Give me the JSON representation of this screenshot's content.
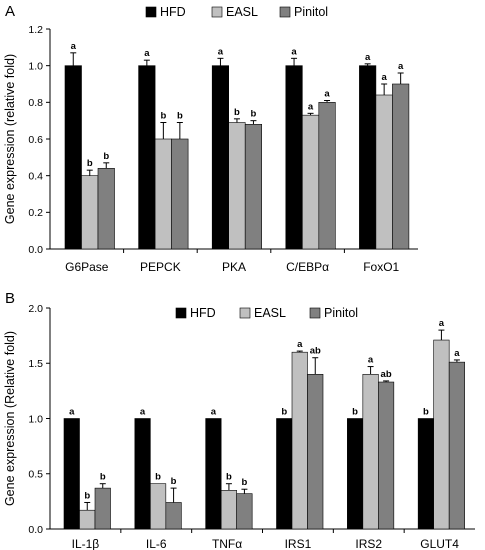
{
  "colors": {
    "HFD": "#000000",
    "EASL": "#c0c0c0",
    "Pinitol": "#808080"
  },
  "chart_data": [
    {
      "panel_label": "A",
      "type": "bar",
      "ylabel": "Gene expression (relative fold)",
      "ylim": [
        0,
        1.2
      ],
      "yticks": [
        "0.0",
        "0.2",
        "0.4",
        "0.6",
        "0.8",
        "1.0",
        "1.2"
      ],
      "categories": [
        "G6Pase",
        "PEPCK",
        "PKA",
        "C/EBPα",
        "FoxO1"
      ],
      "legend_position": "top",
      "series": [
        {
          "name": "HFD",
          "values": [
            1.0,
            1.0,
            1.0,
            1.0,
            1.0
          ],
          "errors": [
            0.07,
            0.03,
            0.04,
            0.04,
            0.01
          ],
          "labels": [
            "a",
            "a",
            "a",
            "a",
            "a"
          ]
        },
        {
          "name": "EASL",
          "values": [
            0.4,
            0.6,
            0.69,
            0.73,
            0.84
          ],
          "errors": [
            0.03,
            0.09,
            0.02,
            0.01,
            0.06
          ],
          "labels": [
            "b",
            "b",
            "b",
            "a",
            "a"
          ]
        },
        {
          "name": "Pinitol",
          "values": [
            0.44,
            0.6,
            0.68,
            0.8,
            0.9
          ],
          "errors": [
            0.03,
            0.09,
            0.02,
            0.01,
            0.06
          ],
          "labels": [
            "b",
            "b",
            "b",
            "a",
            "a"
          ]
        }
      ]
    },
    {
      "panel_label": "B",
      "type": "bar",
      "ylabel": "Gene expression (Relative fold)",
      "ylim": [
        0,
        2.0
      ],
      "yticks": [
        "0.0",
        "0.5",
        "1.0",
        "1.5",
        "2.0"
      ],
      "categories": [
        "IL-1β",
        "IL-6",
        "TNFα",
        "IRS1",
        "IRS2",
        "GLUT4"
      ],
      "legend_position": "top",
      "series": [
        {
          "name": "HFD",
          "values": [
            1.0,
            1.0,
            1.0,
            1.0,
            1.0,
            1.0
          ],
          "errors": [
            0,
            0,
            0,
            0,
            0,
            0
          ],
          "labels": [
            "a",
            "a",
            "a",
            "b",
            "b",
            "b"
          ]
        },
        {
          "name": "EASL",
          "values": [
            0.17,
            0.41,
            0.35,
            1.6,
            1.4,
            1.71
          ],
          "errors": [
            0.07,
            0.0,
            0.06,
            0.01,
            0.07,
            0.09
          ],
          "labels": [
            "b",
            "b",
            "b",
            "a",
            "a",
            "a"
          ]
        },
        {
          "name": "Pinitol",
          "values": [
            0.37,
            0.24,
            0.32,
            1.4,
            1.33,
            1.51
          ],
          "errors": [
            0.04,
            0.13,
            0.04,
            0.15,
            0.01,
            0.02
          ],
          "labels": [
            "b",
            "b",
            "b",
            "ab",
            "ab",
            "a"
          ]
        }
      ]
    }
  ]
}
